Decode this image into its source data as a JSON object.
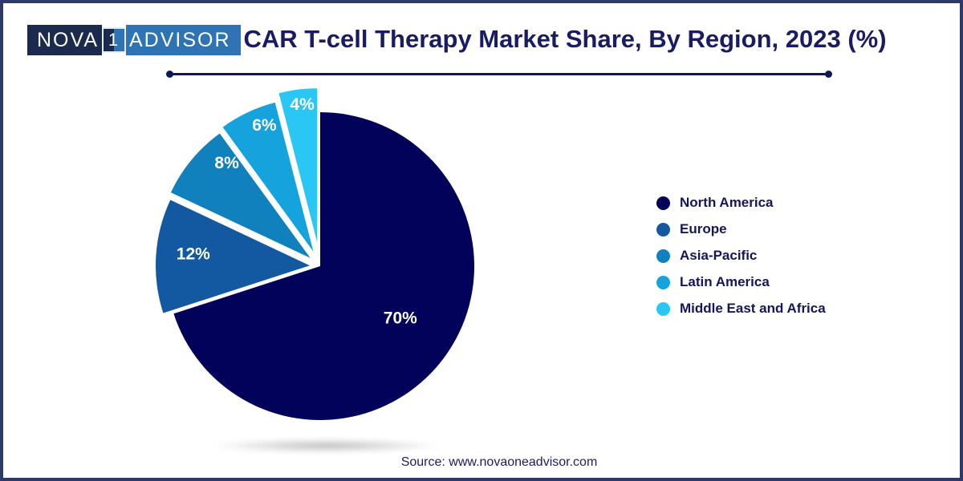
{
  "page": {
    "background": "#ffffff",
    "border_color": "#2d3a69"
  },
  "logo": {
    "part1": "NOVA",
    "number": "1",
    "part2": "ADVISOR",
    "navy_bg": "#1b2a4d",
    "blue_bg": "#2e74b4"
  },
  "header": {
    "title": "CAR T-cell Therapy Market Share, By Region, 2023 (%)"
  },
  "footer": {
    "source": "Source: www.novaoneadvisor.com"
  },
  "chart_data": {
    "type": "pie",
    "title": "CAR T-cell Therapy Market Share, By Region, 2023 (%)",
    "unit": "%",
    "labels": [
      "North America",
      "Europe",
      "Asia-Pacific",
      "Latin America",
      "Middle East and Africa"
    ],
    "values": [
      70,
      12,
      8,
      6,
      4
    ],
    "value_labels": [
      "70%",
      "12%",
      "8%",
      "6%",
      "4%"
    ],
    "colors": [
      "#02025a",
      "#1259a1",
      "#1081bc",
      "#16a2dd",
      "#2bc7f4"
    ],
    "start_angle_deg": 0,
    "direction": "clockwise",
    "exploded": [
      false,
      true,
      true,
      true,
      true
    ],
    "legend_position": "right",
    "value_label_color": "#ffffff"
  }
}
